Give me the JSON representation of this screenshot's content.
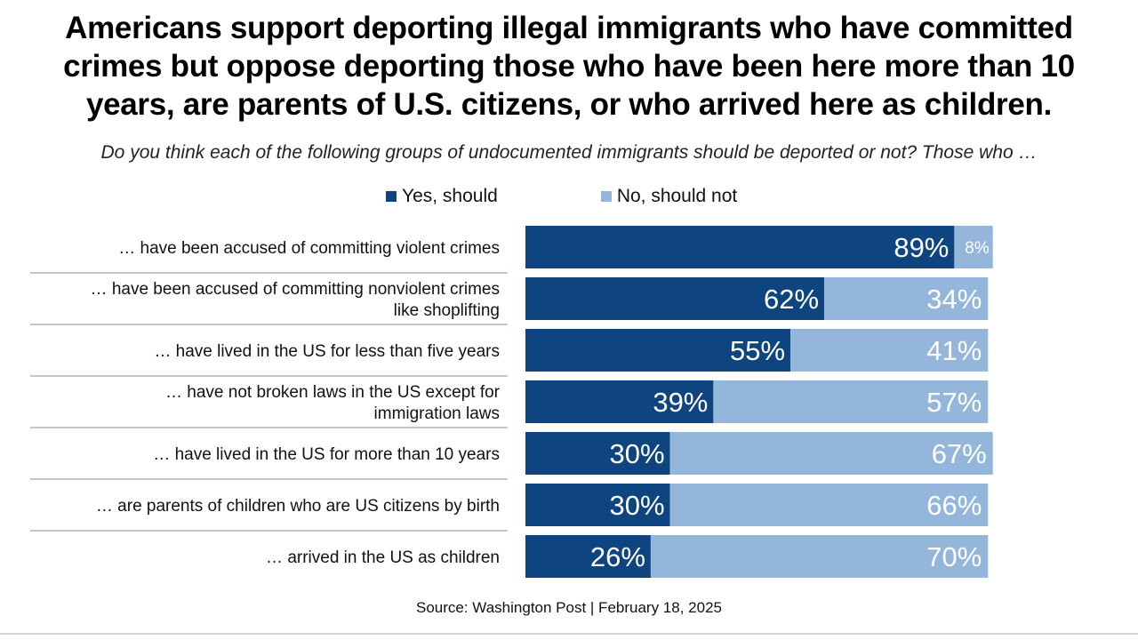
{
  "chart_data": {
    "type": "bar",
    "stacked": true,
    "orientation": "horizontal",
    "title": "Americans support deporting illegal immigrants who have committed crimes but oppose deporting those who have been here more than 10 years, are parents of U.S. citizens, or who arrived here as children.",
    "subtitle": "Do you think each of the following groups of undocumented immigrants should be deported or not? Those who …",
    "categories": [
      [
        "… have been accused of committing violent crimes"
      ],
      [
        "… have been accused of committing nonviolent crimes",
        "like shoplifting"
      ],
      [
        "… have lived in the US for less than five years"
      ],
      [
        "… have not broken laws in the US except for",
        "immigration laws"
      ],
      [
        "… have lived in the US for more than 10 years"
      ],
      [
        "… are parents of children who are US citizens by birth"
      ],
      [
        "… arrived in the US as children"
      ]
    ],
    "series": [
      {
        "name": "Yes, should",
        "color": "#0e4580",
        "label_color": "#ffffff",
        "values": [
          89,
          62,
          55,
          39,
          30,
          30,
          26
        ],
        "labels": [
          "89%",
          "62%",
          "55%",
          "39%",
          "30%",
          "30%",
          "26%"
        ]
      },
      {
        "name": "No, should not",
        "color": "#94b6da",
        "label_color": "#ffffff",
        "values": [
          8,
          34,
          41,
          57,
          67,
          66,
          70
        ],
        "labels": [
          "8%",
          "34%",
          "41%",
          "57%",
          "67%",
          "66%",
          "70%"
        ]
      }
    ],
    "xlim": [
      0,
      100
    ],
    "grid": false,
    "legend": "top",
    "source": "Source: Washington Post | February 18, 2025"
  }
}
